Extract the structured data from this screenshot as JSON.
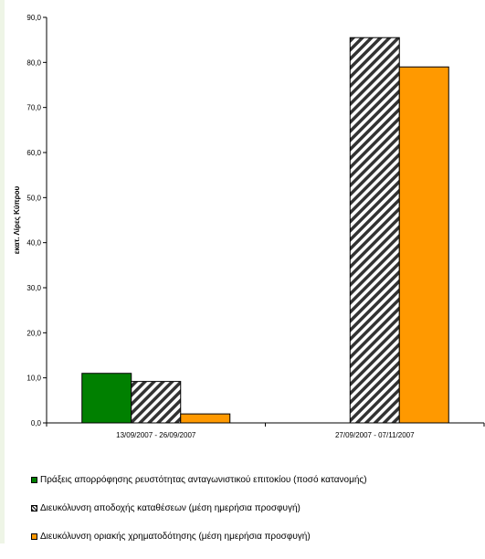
{
  "chart_data": {
    "type": "bar",
    "title": "",
    "xlabel": "",
    "ylabel": "εκατ. Λίρες Κύπρου",
    "ylim": [
      0,
      90
    ],
    "yticks": [
      "0,0",
      "10,0",
      "20,0",
      "30,0",
      "40,0",
      "50,0",
      "60,0",
      "70,0",
      "80,0",
      "90,0"
    ],
    "categories": [
      "13/09/2007 - 26/09/2007",
      "27/09/2007 - 07/11/2007"
    ],
    "grid": false,
    "legend_position": "bottom",
    "series": [
      {
        "name": "Πράξεις απορρόφησης ρευστότητας ανταγωνιστικού επιτοκίου (ποσό κατανομής)",
        "values": [
          11.0,
          0
        ],
        "color": "#008000",
        "pattern": "solid"
      },
      {
        "name": "Διευκόλυνση αποδοχής καταθέσεων (μέση ημερήσια προσφυγή)",
        "values": [
          9.2,
          85.5
        ],
        "color": "#333333",
        "pattern": "hatch"
      },
      {
        "name": "Διευκόλυνση οριακής χρηματοδότησης (μέση ημερήσια προσφυγή)",
        "values": [
          2.0,
          79.0
        ],
        "color": "#ff9900",
        "pattern": "solid"
      }
    ]
  }
}
